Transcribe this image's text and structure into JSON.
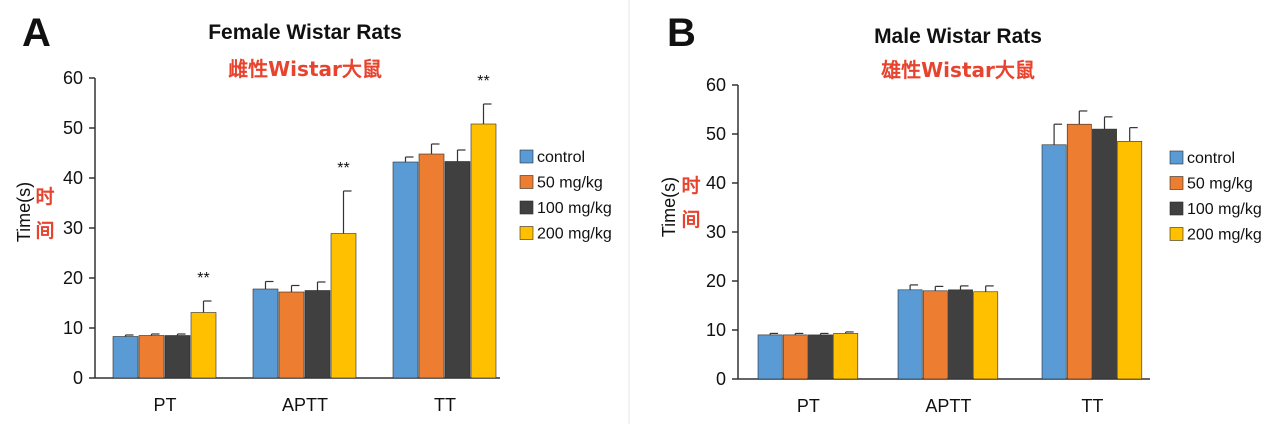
{
  "chart_data": [
    {
      "type": "bar",
      "panel_label": "A",
      "title": "Female Wistar Rats",
      "subtitle": "雌性Wistar大鼠",
      "ylabel": "Time(s)",
      "ylabel_cn": "时间",
      "ylim": [
        0,
        60
      ],
      "yticks": [
        0,
        10,
        20,
        30,
        40,
        50,
        60
      ],
      "categories": [
        "PT",
        "APTT",
        "TT"
      ],
      "legend_position": "right",
      "series": [
        {
          "name": "control",
          "color": "#5b9bd5",
          "values": [
            8.3,
            17.8,
            43.2
          ],
          "errors": [
            0.3,
            1.5,
            1.0
          ]
        },
        {
          "name": "50 mg/kg",
          "color": "#ed7d31",
          "values": [
            8.5,
            17.2,
            44.8
          ],
          "errors": [
            0.3,
            1.3,
            2.0
          ]
        },
        {
          "name": "100 mg/kg",
          "color": "#404040",
          "values": [
            8.5,
            17.5,
            43.3
          ],
          "errors": [
            0.3,
            1.7,
            2.3
          ]
        },
        {
          "name": "200 mg/kg",
          "color": "#ffc000",
          "values": [
            13.1,
            28.9,
            50.8
          ],
          "errors": [
            2.3,
            8.5,
            4.0
          ]
        }
      ],
      "annotations": [
        {
          "category": "PT",
          "series": "200 mg/kg",
          "text": "**"
        },
        {
          "category": "APTT",
          "series": "200 mg/kg",
          "text": "**"
        },
        {
          "category": "TT",
          "series": "200 mg/kg",
          "text": "**"
        }
      ]
    },
    {
      "type": "bar",
      "panel_label": "B",
      "title": "Male Wistar Rats",
      "subtitle": "雄性Wistar大鼠",
      "ylabel": "Time(s)",
      "ylabel_cn": "时间",
      "ylim": [
        0,
        60
      ],
      "yticks": [
        0,
        10,
        20,
        30,
        40,
        50,
        60
      ],
      "categories": [
        "PT",
        "APTT",
        "TT"
      ],
      "legend_position": "right",
      "series": [
        {
          "name": "control",
          "color": "#5b9bd5",
          "values": [
            9.0,
            18.2,
            47.8
          ],
          "errors": [
            0.3,
            1.0,
            4.2
          ]
        },
        {
          "name": "50 mg/kg",
          "color": "#ed7d31",
          "values": [
            9.0,
            18.0,
            52.0
          ],
          "errors": [
            0.3,
            0.9,
            2.7
          ]
        },
        {
          "name": "100 mg/kg",
          "color": "#404040",
          "values": [
            9.0,
            18.2,
            51.0
          ],
          "errors": [
            0.3,
            0.8,
            2.5
          ]
        },
        {
          "name": "200 mg/kg",
          "color": "#ffc000",
          "values": [
            9.3,
            17.8,
            48.5
          ],
          "errors": [
            0.3,
            1.2,
            2.8
          ]
        }
      ],
      "annotations": []
    }
  ]
}
